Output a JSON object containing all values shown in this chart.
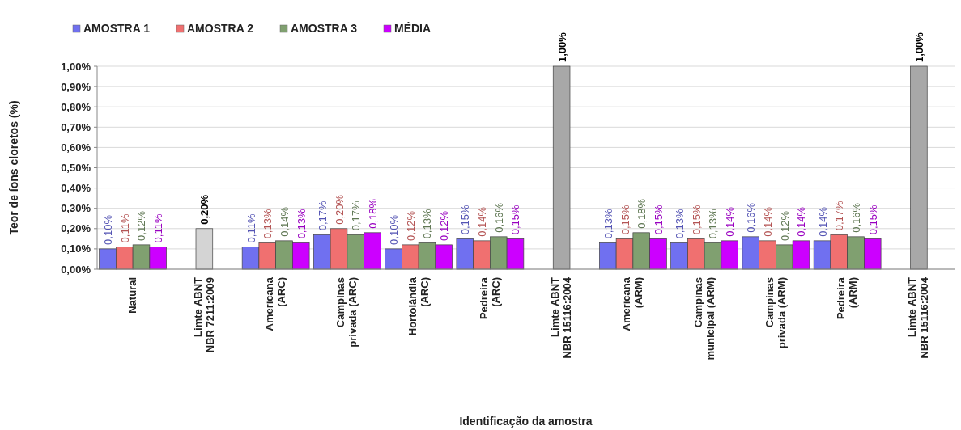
{
  "chart_data": {
    "type": "bar",
    "xlabel": "Identificação da amostra",
    "ylabel": "Teor de íons cloretos (%)",
    "categories": [
      "Natural",
      "Limte ABNT\nNBR 7211:2009",
      "Americana\n(ARC)",
      "Campinas\nprivada (ARC)",
      "Hortolândia\n(ARC)",
      "Pedreira\n(ARC)",
      "Limte ABNT\nNBR 15116:2004",
      "Americana\n(ARM)",
      "Campinas\nmunicipal (ARM)",
      "Campinas\nprivada (ARM)",
      "Pedreira\n(ARM)",
      "Limte ABNT\nNBR 15116:2004"
    ],
    "series": [
      {
        "name": "AMOSTRA 1",
        "color": "#7070f0",
        "values": [
          0.1,
          null,
          0.11,
          0.17,
          0.1,
          0.15,
          null,
          0.13,
          0.13,
          0.16,
          0.14,
          null
        ],
        "value_labels": [
          "0,10%",
          null,
          "0,11%",
          "0,17%",
          "0,10%",
          "0,15%",
          null,
          "0,13%",
          "0,13%",
          "0,16%",
          "0,14%",
          null
        ]
      },
      {
        "name": "AMOSTRA 2",
        "color": "#f07070",
        "values": [
          0.11,
          null,
          0.13,
          0.2,
          0.12,
          0.14,
          null,
          0.15,
          0.15,
          0.14,
          0.17,
          null
        ],
        "value_labels": [
          "0,11%",
          null,
          "0,13%",
          "0,20%",
          "0,12%",
          "0,14%",
          null,
          "0,15%",
          "0,15%",
          "0,14%",
          "0,17%",
          null
        ]
      },
      {
        "name": "AMOSTRA 3",
        "color": "#80a070",
        "values": [
          0.12,
          null,
          0.14,
          0.17,
          0.13,
          0.16,
          null,
          0.18,
          0.13,
          0.12,
          0.16,
          null
        ],
        "value_labels": [
          "0,12%",
          null,
          "0,14%",
          "0,17%",
          "0,13%",
          "0,16%",
          null,
          "0,18%",
          "0,13%",
          "0,12%",
          "0,16%",
          null
        ]
      },
      {
        "name": "MÉDIA",
        "color": "#cc00ff",
        "values": [
          0.11,
          null,
          0.13,
          0.18,
          0.12,
          0.15,
          null,
          0.15,
          0.14,
          0.14,
          0.15,
          null
        ],
        "value_labels": [
          "0,11%",
          null,
          "0,13%",
          "0,18%",
          "0,12%",
          "0,15%",
          null,
          "0,15%",
          "0,14%",
          "0,14%",
          "0,15%",
          null
        ]
      },
      {
        "colors": [
          null,
          "#d4d4d4",
          null,
          null,
          null,
          null,
          "#a8a8a8",
          null,
          null,
          null,
          null,
          "#a8a8a8"
        ],
        "values": [
          null,
          0.2,
          null,
          null,
          null,
          null,
          1.0,
          null,
          null,
          null,
          null,
          1.0
        ],
        "value_labels": [
          null,
          "0,20%",
          null,
          null,
          null,
          null,
          "1,00%",
          null,
          null,
          null,
          null,
          "1,00%"
        ]
      }
    ],
    "ylim": [
      0,
      1
    ],
    "yticks": [
      {
        "value": 0,
        "label": "0,00%"
      },
      {
        "value": 0.1,
        "label": "0,10%"
      },
      {
        "value": 0.2,
        "label": "0,20%"
      },
      {
        "value": 0.3,
        "label": "0,30%"
      },
      {
        "value": 0.4,
        "label": "0,40%"
      },
      {
        "value": 0.5,
        "label": "0,50%"
      },
      {
        "value": 0.6,
        "label": "0,60%"
      },
      {
        "value": 0.7,
        "label": "0,70%"
      },
      {
        "value": 0.8,
        "label": "0,80%"
      },
      {
        "value": 0.9,
        "label": "0,90%"
      },
      {
        "value": 1,
        "label": "1,00%"
      }
    ],
    "grid": "y",
    "legend": "top left"
  }
}
